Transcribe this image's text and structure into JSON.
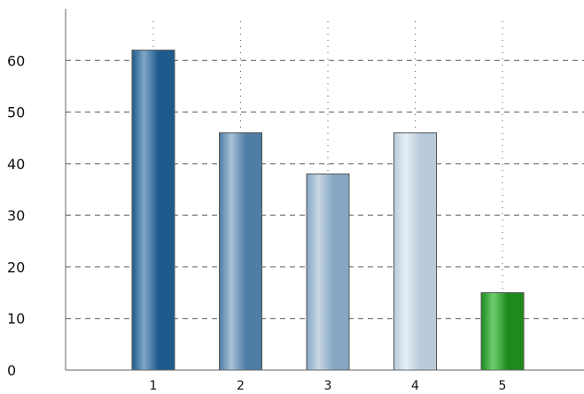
{
  "chart_data": {
    "type": "bar",
    "categories": [
      "1",
      "2",
      "3",
      "4",
      "5"
    ],
    "values": [
      62,
      46,
      38,
      46,
      15
    ],
    "ylim": [
      0,
      70
    ],
    "yticks": [
      0,
      10,
      20,
      30,
      40,
      50,
      60
    ],
    "grid": "horizontal dashed, vertical dotted",
    "legend": "none",
    "bar_colors": [
      {
        "dark": "#1f5a8c",
        "light": "#7fa6c8"
      },
      {
        "dark": "#4f7da6",
        "light": "#a9c2d8"
      },
      {
        "dark": "#86a7c4",
        "light": "#c8d7e4"
      },
      {
        "dark": "#b9cadb",
        "light": "#e6eef5"
      },
      {
        "dark": "#1d8a1d",
        "light": "#6fcf6f"
      }
    ],
    "axis_color": "#666666",
    "grid_color": "#555555",
    "bar_stroke": "#555555"
  }
}
